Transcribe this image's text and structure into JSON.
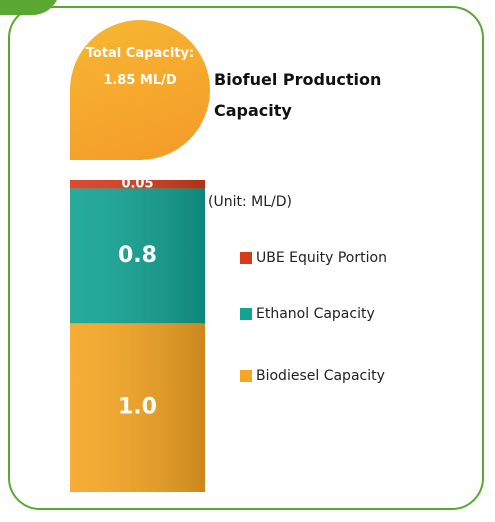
{
  "chart_data": {
    "type": "stacked_bar",
    "title": "Biofuel Production Capacity",
    "total_label": "Total Capacity: 1.85 ML/D",
    "unit_label": "(Unit: ML/D)",
    "series": [
      {
        "name": "Biodiesel Capacity",
        "color": "#f6a623",
        "values": [
          1.0
        ],
        "value_labels": [
          "1.0"
        ]
      },
      {
        "name": "Ethanol Capacity",
        "color": "#12a393",
        "values": [
          0.8
        ]
      },
      {
        "name": "UBE Equity Portion",
        "color": "#d63c1c",
        "values": [
          0.05
        ]
      }
    ]
  }
}
